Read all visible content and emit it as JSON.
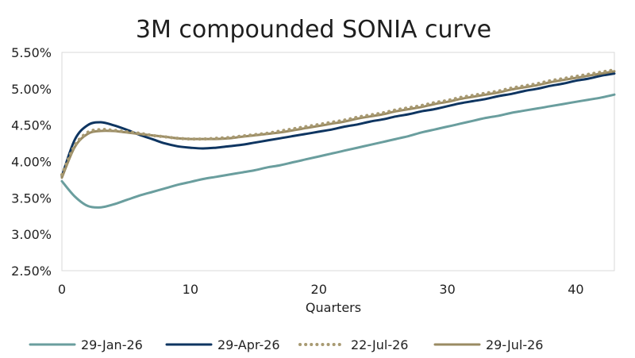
{
  "chart_data": {
    "type": "line",
    "title": "3M compounded SONIA curve",
    "xlabel": "Quarters",
    "ylabel": "",
    "xlim": [
      0,
      43
    ],
    "ylim": [
      2.5,
      5.5
    ],
    "xticks": [
      0,
      10,
      20,
      30,
      40
    ],
    "xtick_labels": [
      "0",
      "10",
      "20",
      "30",
      "40"
    ],
    "yticks": [
      2.5,
      3.0,
      3.5,
      4.0,
      4.5,
      5.0,
      5.5
    ],
    "ytick_labels": [
      "2.50%",
      "3.00%",
      "3.50%",
      "4.00%",
      "4.50%",
      "5.00%",
      "5.50%"
    ],
    "grid": false,
    "legend_position": "bottom",
    "x": [
      0,
      1,
      2,
      3,
      4,
      5,
      6,
      7,
      8,
      9,
      10,
      11,
      12,
      13,
      14,
      15,
      16,
      17,
      18,
      19,
      20,
      21,
      22,
      23,
      24,
      25,
      26,
      27,
      28,
      29,
      30,
      31,
      32,
      33,
      34,
      35,
      36,
      37,
      38,
      39,
      40,
      41,
      42,
      43
    ],
    "series": [
      {
        "name": "29-Jan-26",
        "color": "#6a9e9e",
        "style": "solid",
        "values": [
          3.73,
          3.52,
          3.39,
          3.37,
          3.41,
          3.47,
          3.53,
          3.58,
          3.63,
          3.68,
          3.72,
          3.76,
          3.79,
          3.82,
          3.85,
          3.88,
          3.92,
          3.95,
          3.99,
          4.03,
          4.07,
          4.11,
          4.15,
          4.19,
          4.23,
          4.27,
          4.31,
          4.35,
          4.4,
          4.44,
          4.48,
          4.52,
          4.56,
          4.6,
          4.63,
          4.67,
          4.7,
          4.73,
          4.76,
          4.79,
          4.82,
          4.85,
          4.88,
          4.92
        ]
      },
      {
        "name": "29-Apr-26",
        "color": "#0e3561",
        "style": "solid",
        "values": [
          3.8,
          4.3,
          4.5,
          4.54,
          4.5,
          4.44,
          4.37,
          4.31,
          4.25,
          4.21,
          4.19,
          4.18,
          4.19,
          4.21,
          4.23,
          4.26,
          4.29,
          4.32,
          4.35,
          4.38,
          4.41,
          4.44,
          4.48,
          4.51,
          4.55,
          4.58,
          4.62,
          4.65,
          4.69,
          4.72,
          4.76,
          4.8,
          4.83,
          4.86,
          4.9,
          4.93,
          4.97,
          5.0,
          5.04,
          5.07,
          5.11,
          5.14,
          5.18,
          5.21
        ]
      },
      {
        "name": "22-Jul-26",
        "color": "#a89a72",
        "style": "dotted",
        "values": [
          3.82,
          4.22,
          4.4,
          4.44,
          4.43,
          4.41,
          4.39,
          4.36,
          4.34,
          4.32,
          4.31,
          4.31,
          4.32,
          4.33,
          4.35,
          4.37,
          4.39,
          4.42,
          4.45,
          4.48,
          4.51,
          4.54,
          4.57,
          4.61,
          4.64,
          4.67,
          4.71,
          4.74,
          4.77,
          4.81,
          4.84,
          4.88,
          4.91,
          4.94,
          4.97,
          5.01,
          5.04,
          5.07,
          5.11,
          5.14,
          5.17,
          5.2,
          5.23,
          5.26
        ]
      },
      {
        "name": "29-Jul-26",
        "color": "#9a8b63",
        "style": "solid",
        "values": [
          3.78,
          4.2,
          4.38,
          4.42,
          4.42,
          4.4,
          4.38,
          4.36,
          4.34,
          4.32,
          4.31,
          4.31,
          4.31,
          4.32,
          4.34,
          4.36,
          4.38,
          4.4,
          4.43,
          4.46,
          4.49,
          4.52,
          4.55,
          4.59,
          4.62,
          4.65,
          4.69,
          4.72,
          4.75,
          4.79,
          4.82,
          4.86,
          4.89,
          4.92,
          4.95,
          4.99,
          5.02,
          5.05,
          5.09,
          5.12,
          5.15,
          5.18,
          5.21,
          5.24
        ]
      }
    ]
  }
}
